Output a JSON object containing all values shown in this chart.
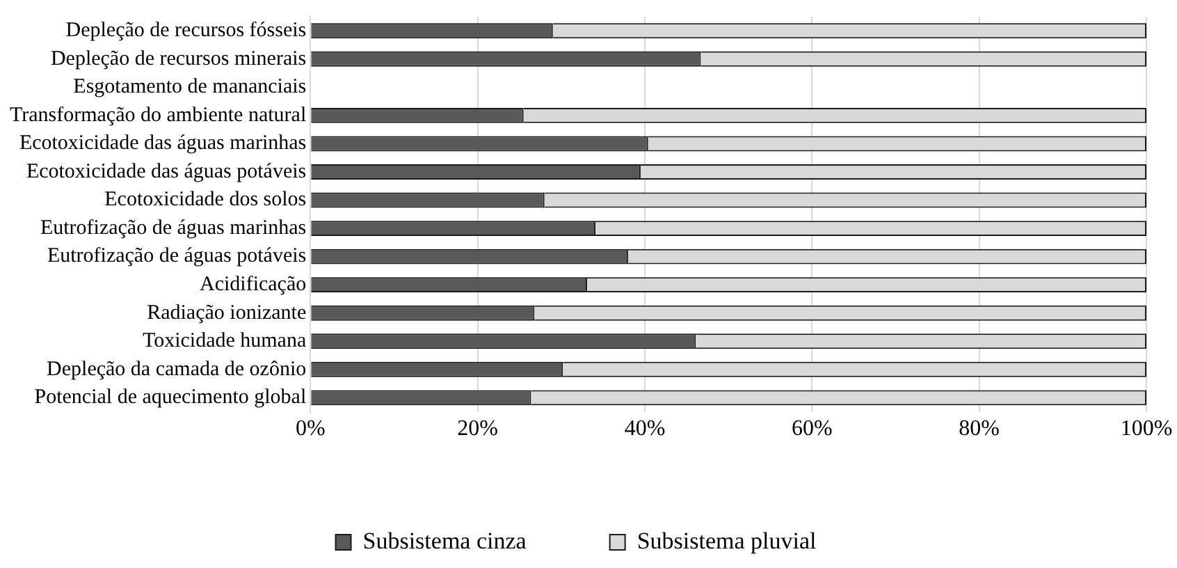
{
  "chart_data": {
    "type": "bar",
    "orientation": "horizontal",
    "stacked": true,
    "categories": [
      "Depleção de recursos fósseis",
      "Depleção de recursos minerais",
      "Esgotamento de mananciais",
      "Transformação do ambiente natural",
      "Ecotoxicidade das águas marinhas",
      "Ecotoxicidade das águas potáveis",
      "Ecotoxicidade dos solos",
      "Eutrofização de águas marinhas",
      "Eutrofização de águas potáveis",
      "Acidificação",
      "Radiação ionizante",
      "Toxicidade humana",
      "Depleção da camada de ozônio",
      "Potencial de aquecimento global"
    ],
    "series": [
      {
        "name": "Subsistema cinza",
        "color": "#595959",
        "values": [
          29,
          46.7,
          null,
          25.5,
          40.4,
          39.5,
          28,
          34.1,
          38,
          33.1,
          26.8,
          46.1,
          30.2,
          26.4
        ]
      },
      {
        "name": "Subsistema pluvial",
        "color": "#d9d9d9",
        "values": [
          71,
          53.3,
          null,
          74.5,
          59.6,
          60.5,
          72,
          65.9,
          62,
          66.9,
          73.2,
          53.9,
          69.8,
          73.6
        ]
      }
    ],
    "xlim": [
      0,
      100
    ],
    "xticks": [
      {
        "value": 0,
        "label": "0%"
      },
      {
        "value": 20,
        "label": "20%"
      },
      {
        "value": 40,
        "label": "40%"
      },
      {
        "value": 60,
        "label": "60%"
      },
      {
        "value": 80,
        "label": "80%"
      },
      {
        "value": 100,
        "label": "100%"
      }
    ],
    "grid": "x",
    "legend": "bottom"
  }
}
